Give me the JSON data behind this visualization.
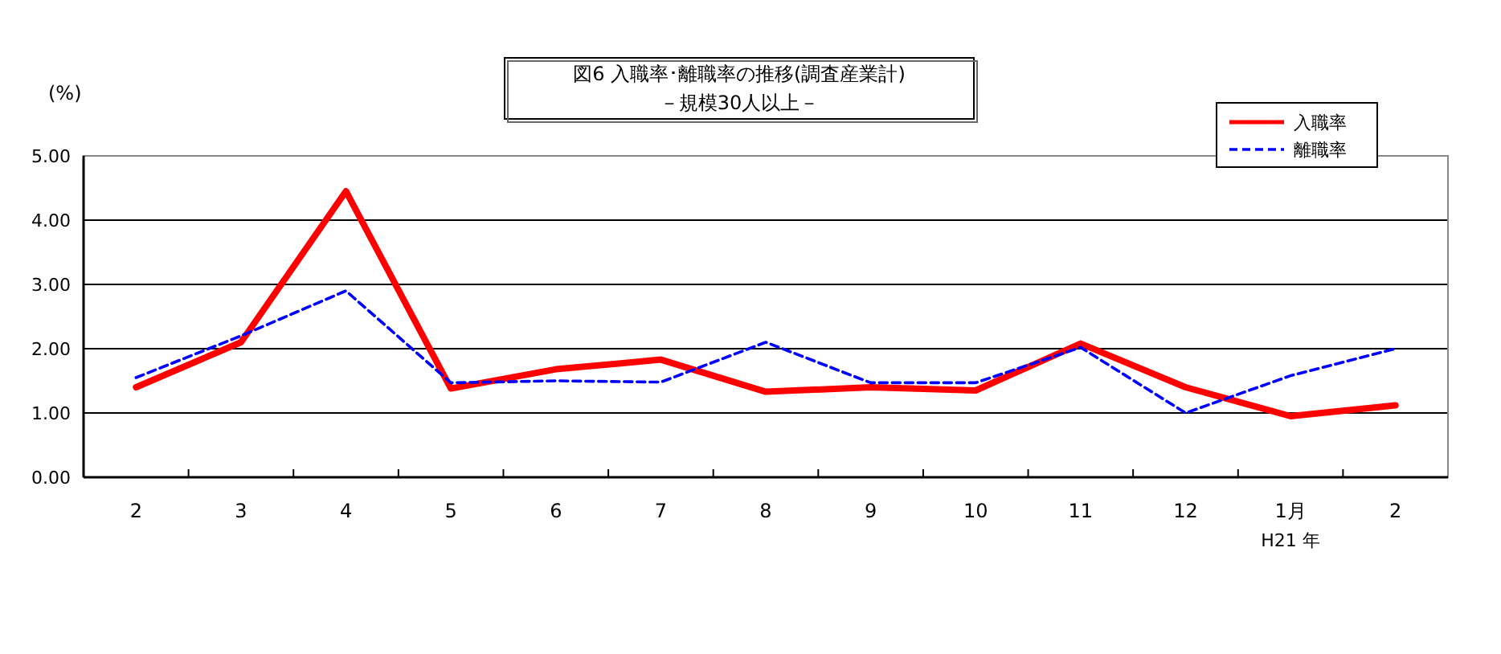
{
  "chart_data": {
    "type": "line",
    "title": "図6  入職率･離職率の推移(調査産業計)",
    "subtitle": "－規模30人以上－",
    "ylabel": "(%)",
    "categories": [
      "2",
      "3",
      "4",
      "5",
      "6",
      "7",
      "8",
      "9",
      "10",
      "11",
      "12",
      "1月",
      "2"
    ],
    "series": [
      {
        "name": "入職率",
        "color": "#ff0000",
        "line_style": "solid",
        "values": [
          1.4,
          2.1,
          4.45,
          1.38,
          1.68,
          1.83,
          1.33,
          1.4,
          1.35,
          2.08,
          1.4,
          0.95,
          1.12
        ]
      },
      {
        "name": "離職率",
        "color": "#0000ff",
        "line_style": "dashed",
        "values": [
          1.55,
          2.2,
          2.9,
          1.47,
          1.5,
          1.48,
          2.1,
          1.47,
          1.47,
          2.02,
          1.0,
          1.58,
          2.0
        ]
      }
    ],
    "annotations": [
      "H21 年"
    ],
    "ylim": [
      0,
      5
    ],
    "yticks": [
      {
        "value": 0,
        "label": "0.00"
      },
      {
        "value": 1,
        "label": "1.00"
      },
      {
        "value": 2,
        "label": "2.00"
      },
      {
        "value": 3,
        "label": "3.00"
      },
      {
        "value": 4,
        "label": "4.00"
      },
      {
        "value": 5,
        "label": "5.00"
      }
    ],
    "grid": "y",
    "legend": "top right",
    "marker": "none"
  }
}
